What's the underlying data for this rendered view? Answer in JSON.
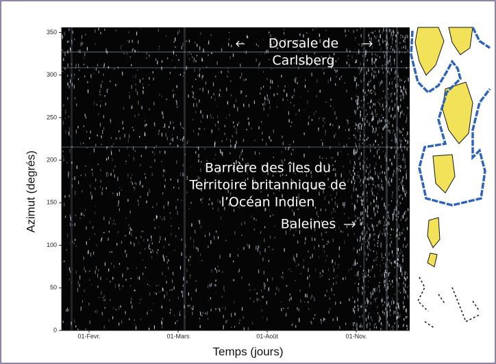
{
  "chart_data": {
    "type": "spectrogram",
    "xlabel": "Temps (jours)",
    "ylabel": "Azimut (degrés)",
    "categories": [
      "01-Fevr.",
      "01-Mars",
      "01-Août",
      "01-Nov."
    ],
    "ylim": [
      0,
      356
    ],
    "yticks": [
      0,
      50,
      100,
      150,
      200,
      250,
      300,
      350
    ],
    "annotations": [
      {
        "lines": [
          "Dorsale de",
          "Carlsberg"
        ]
      },
      {
        "lines": [
          "Barrière des îles du",
          "Territoire britannique de",
          "l’Océan Indien"
        ]
      },
      {
        "lines": [
          "Baleines"
        ]
      }
    ]
  }
}
